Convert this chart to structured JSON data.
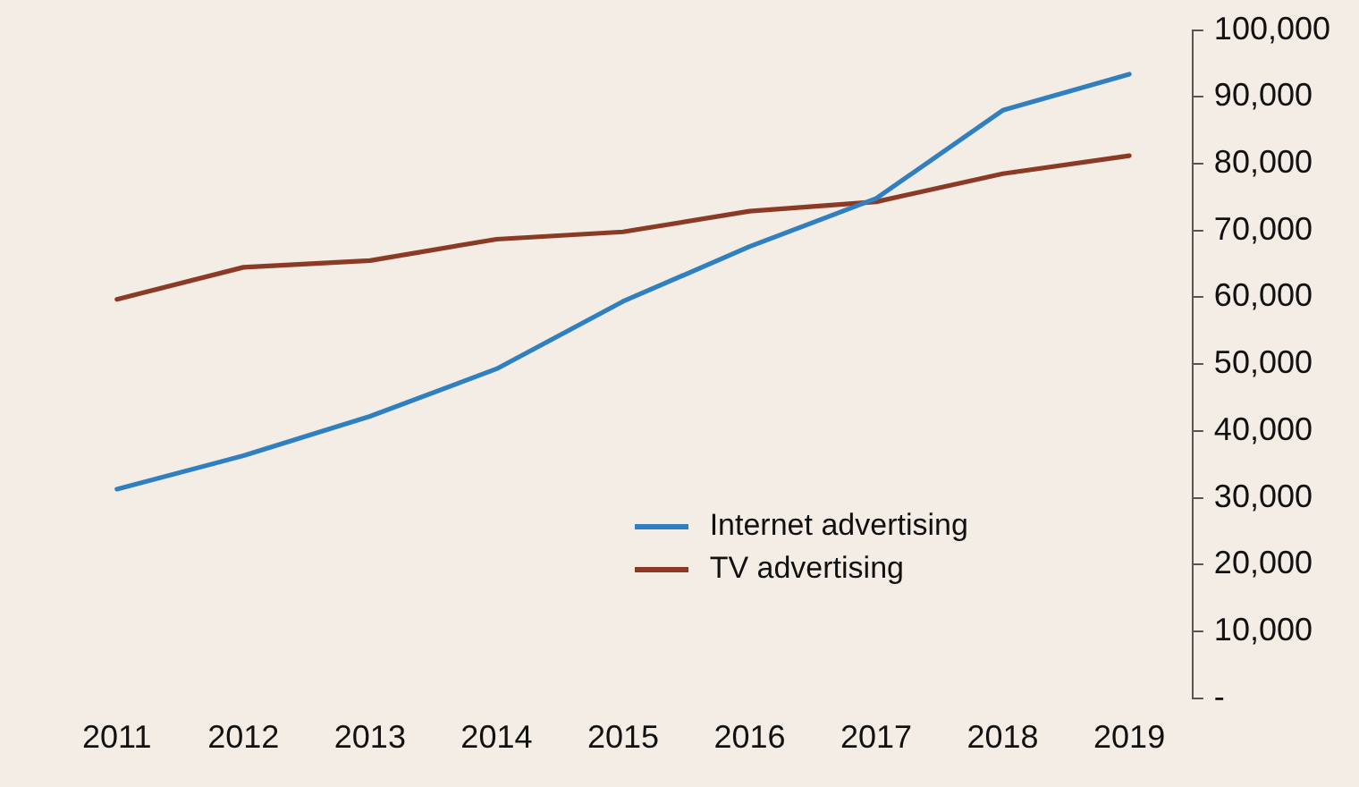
{
  "chart_data": {
    "type": "line",
    "categories": [
      "2011",
      "2012",
      "2013",
      "2014",
      "2015",
      "2016",
      "2017",
      "2018",
      "2019"
    ],
    "series": [
      {
        "name": "Internet advertising",
        "color": "#2f7fc1",
        "values": [
          31300,
          36300,
          42200,
          49300,
          59400,
          67600,
          74800,
          88000,
          93400
        ]
      },
      {
        "name": "TV advertising",
        "color": "#8b3a26",
        "values": [
          59700,
          64500,
          65500,
          68700,
          69800,
          72900,
          74300,
          78500,
          81200
        ]
      }
    ],
    "ylim": [
      0,
      100000
    ],
    "yticks": [
      {
        "value": 0,
        "label": "-"
      },
      {
        "value": 10000,
        "label": "10,000"
      },
      {
        "value": 20000,
        "label": "20,000"
      },
      {
        "value": 30000,
        "label": "30,000"
      },
      {
        "value": 40000,
        "label": "40,000"
      },
      {
        "value": 50000,
        "label": "50,000"
      },
      {
        "value": 60000,
        "label": "60,000"
      },
      {
        "value": 70000,
        "label": "70,000"
      },
      {
        "value": 80000,
        "label": "80,000"
      },
      {
        "value": 90000,
        "label": "90,000"
      },
      {
        "value": 100000,
        "label": "100,000"
      }
    ],
    "grid": false,
    "legend": "bottom right",
    "marker": "none",
    "line_style": "solid"
  }
}
